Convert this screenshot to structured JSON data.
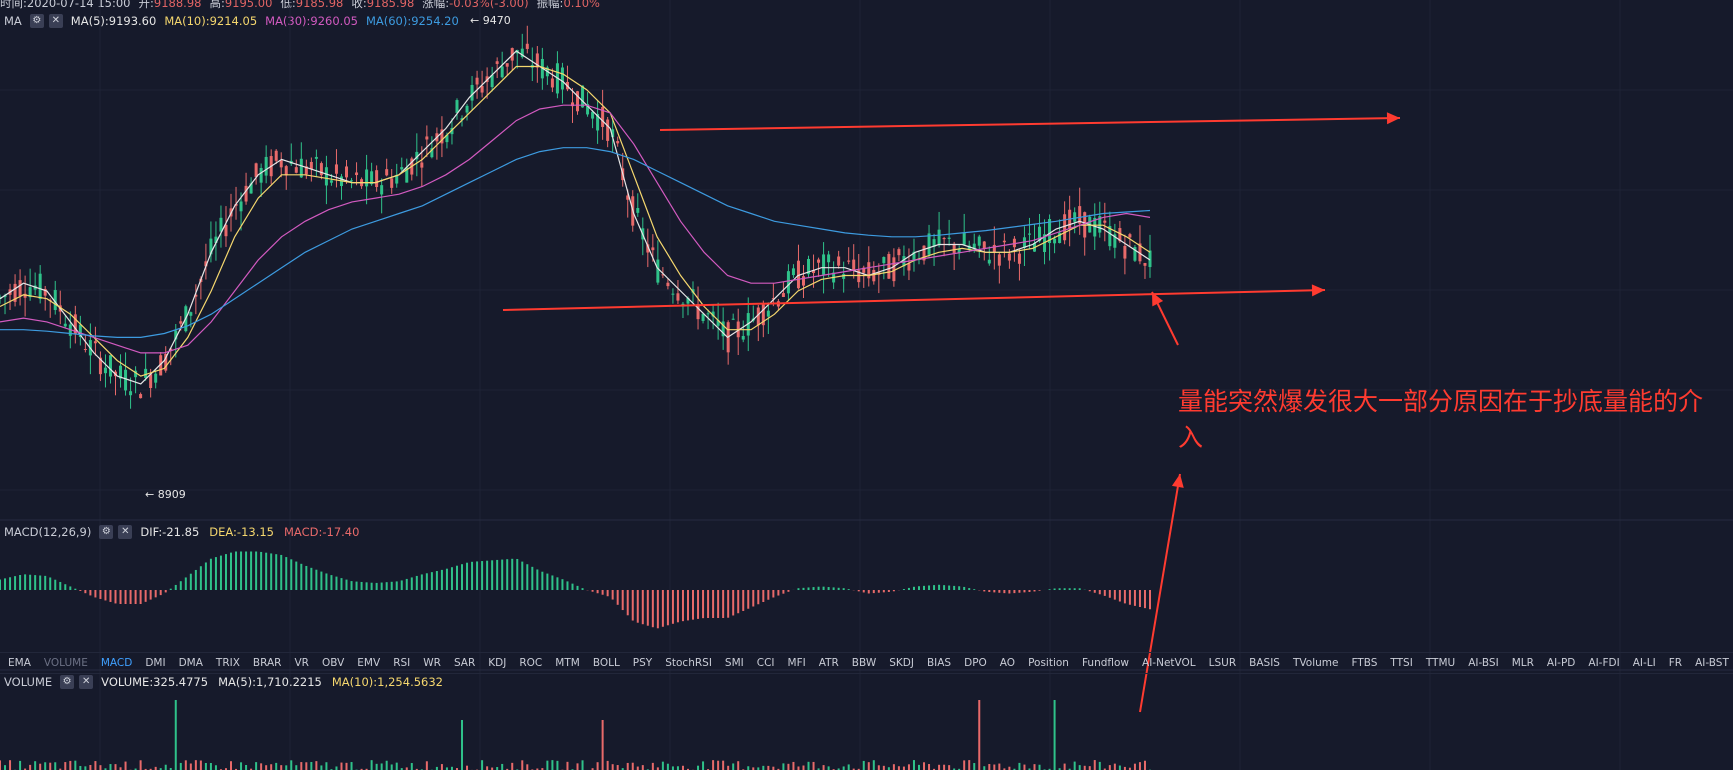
{
  "header": {
    "ohlc": [
      {
        "k": "时间:2020-07-14 15:00",
        "v": ""
      },
      {
        "k": "开:",
        "v": "9188.98"
      },
      {
        "k": "高:",
        "v": "9195.00"
      },
      {
        "k": "低:",
        "v": "9185.98"
      },
      {
        "k": "收:",
        "v": "9185.98"
      },
      {
        "k": "涨幅:",
        "v": "-0.03%(-3.00)"
      },
      {
        "k": "振幅:",
        "v": "0.10%"
      }
    ],
    "ma_label": "MA",
    "ma_values": [
      {
        "text": "MA(5):9193.60",
        "color": "#e6e6e6"
      },
      {
        "text": "MA(10):9214.05",
        "color": "#f5d76e"
      },
      {
        "text": "MA(30):9260.05",
        "color": "#d25ac0"
      },
      {
        "text": "MA(60):9254.20",
        "color": "#3d9be0"
      }
    ]
  },
  "macd_panel": {
    "label": "MACD(12,26,9)",
    "dif": "DIF:-21.85",
    "dea": "DEA:-13.15",
    "macd": "MACD:-17.40"
  },
  "indicator_tabs": {
    "items": [
      "EMA",
      "VOLUME",
      "MACD",
      "DMI",
      "DMA",
      "TRIX",
      "BRAR",
      "VR",
      "OBV",
      "EMV",
      "RSI",
      "WR",
      "SAR",
      "KDJ",
      "ROC",
      "MTM",
      "BOLL",
      "PSY",
      "StochRSI",
      "SMI",
      "CCI",
      "MFI",
      "ATR",
      "BBW",
      "SKDJ",
      "BIAS",
      "DPO",
      "AO",
      "Position",
      "Fundflow",
      "AI-NetVOL",
      "LSUR",
      "BASIS",
      "TVolume",
      "FTBS",
      "TTSI",
      "TTMU",
      "AI-BSI",
      "MLR",
      "AI-PD",
      "AI-FDI",
      "AI-LI",
      "FR",
      "AI-BST"
    ],
    "active": "MACD",
    "inactive": "VOLUME"
  },
  "volume_panel": {
    "label": "VOLUME",
    "volume": "VOLUME:325.4775",
    "ma5": "MA(5):1,710.2215",
    "ma10": "MA(10):1,254.5632"
  },
  "annotation": {
    "text": "量能突然爆发很大一部分原因在于抄底量能的介入"
  },
  "colors": {
    "background": "#161a2b",
    "up": "#2fc28a",
    "down": "#e86a6a",
    "ma5": "#e6e6e6",
    "ma10": "#f5d76e",
    "ma30": "#d25ac0",
    "ma60": "#3d9be0",
    "arrow": "#ff3b30"
  },
  "chart_data": {
    "type": "candlestick",
    "high_label": "9470",
    "low_label": "8909",
    "ylim": [
      8880,
      9500
    ],
    "ma_series": [
      {
        "name": "MA(5)",
        "color": "#e6e6e6",
        "values": [
          9140,
          9160,
          9150,
          9110,
          9070,
          9040,
          9030,
          9060,
          9120,
          9200,
          9260,
          9300,
          9320,
          9310,
          9300,
          9290,
          9290,
          9300,
          9330,
          9360,
          9400,
          9430,
          9460,
          9440,
          9420,
          9390,
          9360,
          9250,
          9180,
          9150,
          9120,
          9090,
          9110,
          9140,
          9170,
          9180,
          9180,
          9170,
          9180,
          9200,
          9210,
          9210,
          9200,
          9200,
          9210,
          9230,
          9240,
          9230,
          9210,
          9190
        ]
      },
      {
        "name": "MA(10)",
        "color": "#f5d76e",
        "values": [
          9130,
          9145,
          9140,
          9120,
          9090,
          9060,
          9040,
          9050,
          9090,
          9150,
          9220,
          9270,
          9300,
          9300,
          9295,
          9290,
          9290,
          9300,
          9320,
          9350,
          9380,
          9410,
          9440,
          9440,
          9430,
          9410,
          9380,
          9300,
          9220,
          9170,
          9130,
          9100,
          9100,
          9120,
          9150,
          9165,
          9170,
          9170,
          9175,
          9190,
          9200,
          9205,
          9200,
          9200,
          9205,
          9220,
          9235,
          9235,
          9220,
          9200
        ]
      },
      {
        "name": "MA(30)",
        "color": "#d25ac0",
        "values": [
          9110,
          9115,
          9110,
          9100,
          9090,
          9080,
          9070,
          9070,
          9080,
          9110,
          9150,
          9190,
          9220,
          9240,
          9255,
          9265,
          9270,
          9275,
          9285,
          9300,
          9320,
          9345,
          9370,
          9385,
          9390,
          9390,
          9380,
          9340,
          9290,
          9240,
          9200,
          9170,
          9160,
          9160,
          9165,
          9170,
          9175,
          9180,
          9185,
          9190,
          9195,
          9200,
          9205,
          9210,
          9215,
          9225,
          9235,
          9245,
          9250,
          9245
        ]
      },
      {
        "name": "MA(60)",
        "color": "#3d9be0",
        "values": [
          9100,
          9100,
          9098,
          9095,
          9092,
          9090,
          9090,
          9095,
          9105,
          9120,
          9140,
          9160,
          9180,
          9200,
          9215,
          9230,
          9240,
          9250,
          9260,
          9275,
          9290,
          9305,
          9320,
          9330,
          9335,
          9335,
          9330,
          9320,
          9305,
          9290,
          9275,
          9260,
          9250,
          9240,
          9235,
          9230,
          9225,
          9222,
          9220,
          9220,
          9222,
          9225,
          9228,
          9232,
          9236,
          9240,
          9245,
          9250,
          9252,
          9254
        ]
      }
    ],
    "annotation_lines": [
      {
        "name": "resistance-line",
        "from": [
          660,
          130
        ],
        "to": [
          1400,
          118
        ]
      },
      {
        "name": "support-line",
        "from": [
          503,
          310
        ],
        "to": [
          1325,
          290
        ]
      },
      {
        "name": "pointer-to-support",
        "from": [
          1178,
          345
        ],
        "to": [
          1152,
          292
        ]
      },
      {
        "name": "pointer-to-volume",
        "from": [
          1140,
          712
        ],
        "to": [
          1180,
          474
        ]
      }
    ]
  }
}
